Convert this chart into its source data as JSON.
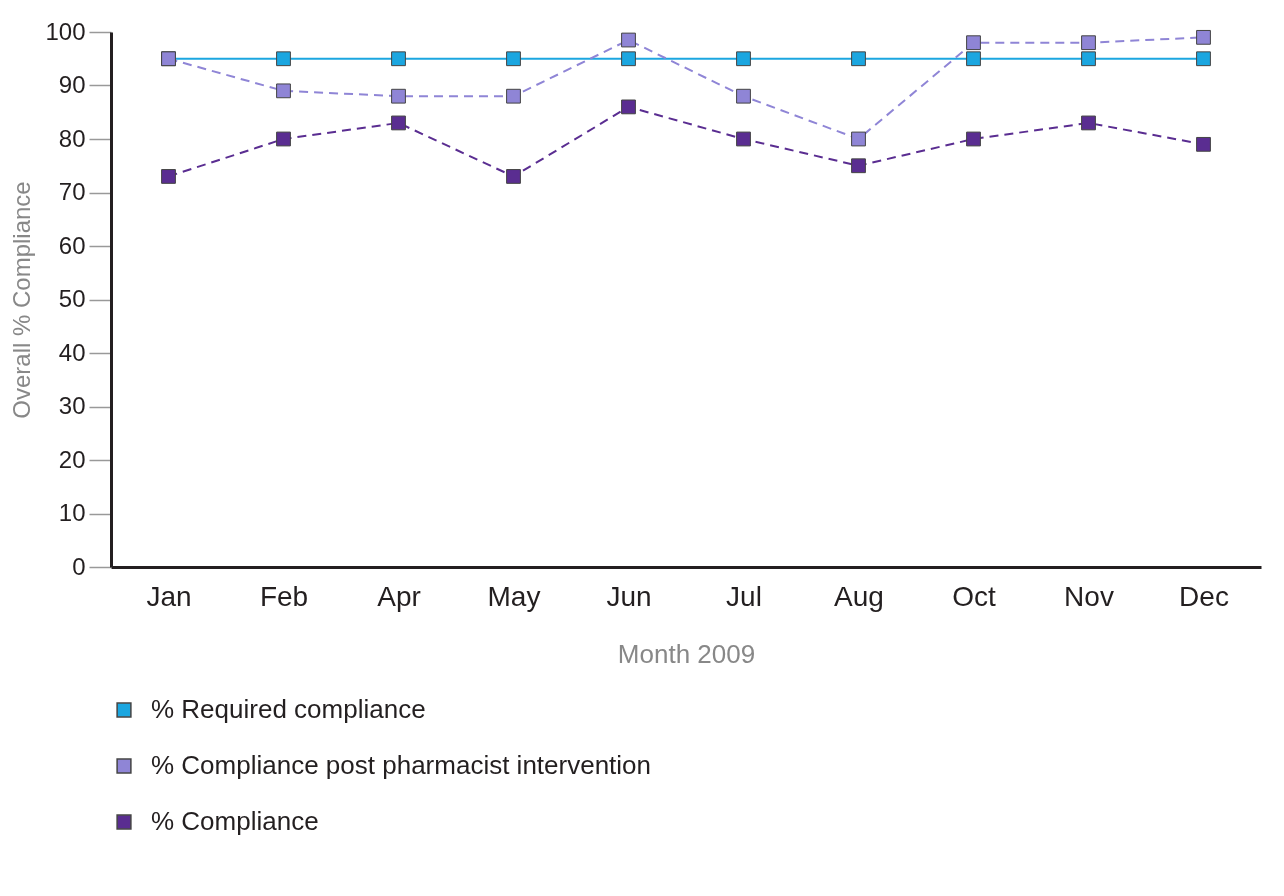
{
  "chart_data": {
    "type": "line",
    "xlabel": "Month 2009",
    "ylabel": "Overall % Compliance",
    "categories": [
      "Jan",
      "Feb",
      "Apr",
      "May",
      "Jun",
      "Jul",
      "Aug",
      "Oct",
      "Nov",
      "Dec"
    ],
    "series": [
      {
        "name": "% Required compliance",
        "color": "#1ba6e0",
        "line_style": "solid",
        "values": [
          95,
          95,
          95,
          95,
          95,
          95,
          95,
          95,
          95,
          95
        ]
      },
      {
        "name": "% Compliance post pharmacist intervention",
        "color": "#8f85d6",
        "line_style": "dashed",
        "values": [
          95,
          89,
          88,
          88,
          98.5,
          88,
          80,
          98,
          98,
          99
        ]
      },
      {
        "name": "% Compliance",
        "color": "#5a2d91",
        "line_style": "dashed",
        "values": [
          73,
          80,
          83,
          73,
          86,
          80,
          75,
          80,
          83,
          79
        ]
      }
    ],
    "ylim": [
      0,
      100
    ],
    "yticks": [
      0,
      10,
      20,
      30,
      40,
      50,
      60,
      70,
      80,
      90,
      100
    ],
    "grid": false,
    "legend": "bottom",
    "marker": "square"
  }
}
